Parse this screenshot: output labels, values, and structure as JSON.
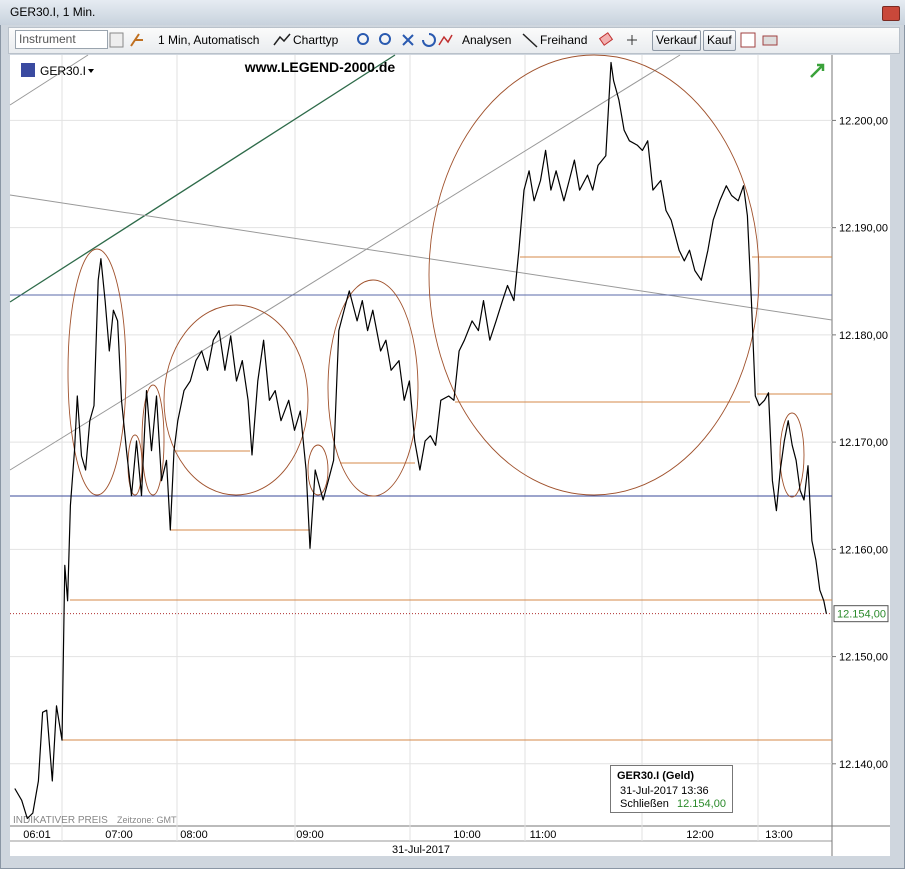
{
  "window": {
    "title": "GER30.I, 1 Min."
  },
  "toolbar": {
    "instrument_placeholder": "Instrument",
    "interval": "1 Min,  Automatisch",
    "chart_type": "Charttyp",
    "analyses": "Analysen",
    "freehand": "Freihand",
    "sell": "Verkauf",
    "buy": "Kauf"
  },
  "chart_data": {
    "type": "line",
    "watermark": "www.LEGEND-2000.de",
    "status": "INDIKATIVER PREIS",
    "timezone": "Zeitzone: GMT",
    "date_label": "31-Jul-2017",
    "grid": true,
    "x": [
      "05:45",
      "05:50",
      "05:54",
      "05:58",
      "06:02",
      "06:05",
      "06:08",
      "06:12",
      "06:15",
      "06:19",
      "06:21",
      "06:23",
      "06:25",
      "06:28",
      "06:30",
      "06:33",
      "06:36",
      "06:39",
      "06:42",
      "06:45",
      "06:47",
      "06:50",
      "06:53",
      "06:56",
      "06:59",
      "07:02",
      "07:06",
      "07:10",
      "07:14",
      "07:18",
      "07:22",
      "07:26",
      "07:30",
      "07:34",
      "07:38",
      "07:41",
      "07:44",
      "07:47",
      "07:52",
      "07:57",
      "08:01",
      "08:04",
      "08:07",
      "08:10",
      "08:13",
      "08:16",
      "08:19",
      "08:22",
      "08:25",
      "08:28",
      "08:30",
      "08:33",
      "08:36",
      "08:39",
      "08:42",
      "08:45",
      "08:49",
      "08:52",
      "08:55",
      "08:58",
      "09:00",
      "09:02",
      "09:05",
      "09:07",
      "09:09",
      "09:11",
      "09:14",
      "09:15",
      "09:18",
      "09:20",
      "09:22",
      "09:24",
      "09:27",
      "09:29",
      "09:31",
      "09:34",
      "09:36",
      "09:38",
      "09:40",
      "09:42",
      "09:44",
      "09:46",
      "09:48",
      "09:50",
      "09:53",
      "09:55",
      "09:57",
      "09:59",
      "10:04",
      "10:09",
      "10:13",
      "10:18",
      "10:23",
      "10:28",
      "10:32",
      "10:37",
      "10:41",
      "10:45",
      "10:49",
      "10:53",
      "10:58",
      "11:01",
      "11:03",
      "11:05",
      "11:08",
      "11:10",
      "11:12",
      "11:14",
      "11:17",
      "11:19",
      "11:21",
      "11:24",
      "11:26",
      "11:27",
      "11:29",
      "11:31",
      "11:33",
      "11:36",
      "11:38",
      "11:40",
      "11:42",
      "11:45",
      "11:47",
      "11:49",
      "11:52",
      "11:54",
      "11:56",
      "11:58",
      "12:01",
      "12:06",
      "12:10",
      "12:15",
      "12:20",
      "12:24",
      "12:29",
      "12:33",
      "12:36",
      "12:39",
      "12:42",
      "12:45",
      "12:49",
      "12:52",
      "12:55",
      "12:58",
      "13:01",
      "13:04",
      "13:07",
      "13:10",
      "13:13",
      "13:16",
      "13:19",
      "13:22",
      "13:25",
      "13:28",
      "13:31",
      "13:34",
      "13:36"
    ],
    "series": [
      {
        "name": "GER30.I",
        "color": "#000000",
        "values": [
          12137.7,
          12136.6,
          12134.9,
          12135.4,
          12138.4,
          12144.8,
          12145.0,
          12138.4,
          12145.4,
          12142.2,
          12158.5,
          12155.2,
          12164.1,
          12169.2,
          12174.3,
          12168.7,
          12167.4,
          12172.0,
          12173.4,
          12185.1,
          12187.1,
          12183.2,
          12178.5,
          12182.3,
          12181.3,
          12173.9,
          12169.2,
          12165.0,
          12170.1,
          12165.0,
          12174.8,
          12169.2,
          12174.3,
          12166.4,
          12168.3,
          12161.8,
          12169.2,
          12172.0,
          12174.8,
          12175.7,
          12177.6,
          12178.5,
          12176.7,
          12179.5,
          12180.4,
          12176.7,
          12179.9,
          12175.7,
          12177.6,
          12173.9,
          12168.8,
          12175.7,
          12179.5,
          12173.9,
          12174.8,
          12172.0,
          12173.9,
          12171.1,
          12172.9,
          12167.4,
          12160.1,
          12167.4,
          12164.6,
          12166.4,
          12168.3,
          12180.4,
          12183.2,
          12184.1,
          12181.3,
          12183.2,
          12180.4,
          12182.3,
          12178.5,
          12179.5,
          12176.7,
          12177.6,
          12173.9,
          12175.7,
          12170.1,
          12167.4,
          12170.1,
          12170.6,
          12169.7,
          12173.9,
          12174.3,
          12173.9,
          12178.5,
          12179.5,
          12181.3,
          12180.4,
          12183.2,
          12179.5,
          12181.3,
          12183.2,
          12184.6,
          12183.2,
          12187.9,
          12193.5,
          12195.3,
          12192.5,
          12194.4,
          12197.2,
          12193.5,
          12195.3,
          12192.5,
          12194.4,
          12196.3,
          12193.5,
          12194.9,
          12193.5,
          12195.8,
          12196.7,
          12205.4,
          12203.7,
          12201.9,
          12199.1,
          12198.1,
          12197.7,
          12197.2,
          12198.1,
          12193.5,
          12194.4,
          12191.6,
          12190.7,
          12187.9,
          12186.9,
          12187.9,
          12186.0,
          12185.1,
          12187.9,
          12190.7,
          12192.5,
          12193.9,
          12193.0,
          12192.5,
          12193.9,
          12191.1,
          12183.2,
          12174.3,
          12173.4,
          12173.9,
          12174.6,
          12166.4,
          12163.6,
          12167.4,
          12170.1,
          12172.0,
          12169.7,
          12168.3,
          12165.5,
          12164.6,
          12167.8,
          12160.8,
          12159.0,
          12156.2,
          12155.2,
          12154.0
        ]
      }
    ],
    "xticks": [
      "06:01",
      "07:00",
      "08:00",
      "09:00",
      "10:00",
      "11:00",
      "12:00",
      "13:00"
    ],
    "ylim": [
      12134.2,
      12206.1
    ],
    "yticks": [
      {
        "value": 12140,
        "label": "12.140,00"
      },
      {
        "value": 12150,
        "label": "12.150,00"
      },
      {
        "value": 12160,
        "label": "12.160,00"
      },
      {
        "value": 12170,
        "label": "12.170,00"
      },
      {
        "value": 12180,
        "label": "12.180,00"
      },
      {
        "value": 12190,
        "label": "12.190,00"
      },
      {
        "value": 12200,
        "label": "12.200,00"
      }
    ],
    "last_price": {
      "value": 12154,
      "label": "12.154,00"
    }
  },
  "infobox": {
    "title": "GER30.I (Geld)",
    "datetime": "31-Jul-2017 13:36",
    "close_label": "Schließen",
    "close_value": "12.154,00"
  }
}
